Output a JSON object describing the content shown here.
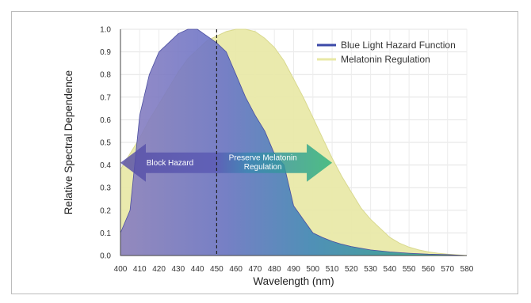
{
  "chart_data": {
    "type": "area",
    "xlabel": "Wavelength (nm)",
    "ylabel": "Relative Spectral Dependence",
    "xlim": [
      400,
      580
    ],
    "ylim": [
      0,
      1.0
    ],
    "x_ticks": [
      "400",
      "410",
      "420",
      "430",
      "440",
      "450",
      "460",
      "470",
      "480",
      "490",
      "500",
      "510",
      "520",
      "530",
      "540",
      "550",
      "560",
      "570",
      "580"
    ],
    "y_ticks": [
      "0.0",
      "0.1",
      "0.2",
      "0.3",
      "0.4",
      "0.5",
      "0.6",
      "0.7",
      "0.8",
      "0.9",
      "1.0"
    ],
    "grid": true,
    "legend_position": "top-right",
    "series": [
      {
        "name": "Blue Light Hazard Function",
        "color": "#3b49a8",
        "x": [
          400,
          405,
          410,
          415,
          420,
          425,
          430,
          435,
          440,
          445,
          450,
          455,
          460,
          465,
          470,
          475,
          480,
          485,
          490,
          495,
          500,
          505,
          510,
          515,
          520,
          530,
          540,
          550,
          560,
          570,
          580
        ],
        "y": [
          0.1,
          0.2,
          0.62,
          0.8,
          0.9,
          0.94,
          0.98,
          1.0,
          1.0,
          0.97,
          0.94,
          0.9,
          0.8,
          0.7,
          0.62,
          0.55,
          0.45,
          0.4,
          0.22,
          0.16,
          0.1,
          0.08,
          0.063,
          0.05,
          0.04,
          0.025,
          0.016,
          0.01,
          0.006,
          0.004,
          0.0
        ]
      },
      {
        "name": "Melatonin Regulation",
        "color": "#e8e8a6",
        "x": [
          400,
          405,
          410,
          415,
          420,
          425,
          430,
          435,
          440,
          445,
          450,
          455,
          460,
          465,
          470,
          475,
          480,
          485,
          490,
          495,
          500,
          505,
          510,
          515,
          520,
          525,
          530,
          535,
          540,
          545,
          550,
          555,
          560,
          565,
          570,
          575,
          580
        ],
        "y": [
          0.38,
          0.45,
          0.52,
          0.6,
          0.67,
          0.74,
          0.81,
          0.87,
          0.91,
          0.95,
          0.97,
          0.99,
          1.0,
          1.0,
          0.99,
          0.96,
          0.92,
          0.86,
          0.78,
          0.7,
          0.61,
          0.52,
          0.43,
          0.35,
          0.28,
          0.21,
          0.16,
          0.12,
          0.08,
          0.055,
          0.037,
          0.025,
          0.016,
          0.01,
          0.006,
          0.003,
          0.0
        ]
      }
    ],
    "marker_line": {
      "x": 450,
      "style": "dashed"
    },
    "annotations": {
      "left_arrow": "Block Hazard",
      "right_arrow_line1": "Preserve Melatonin",
      "right_arrow_line2": "Regulation"
    }
  }
}
